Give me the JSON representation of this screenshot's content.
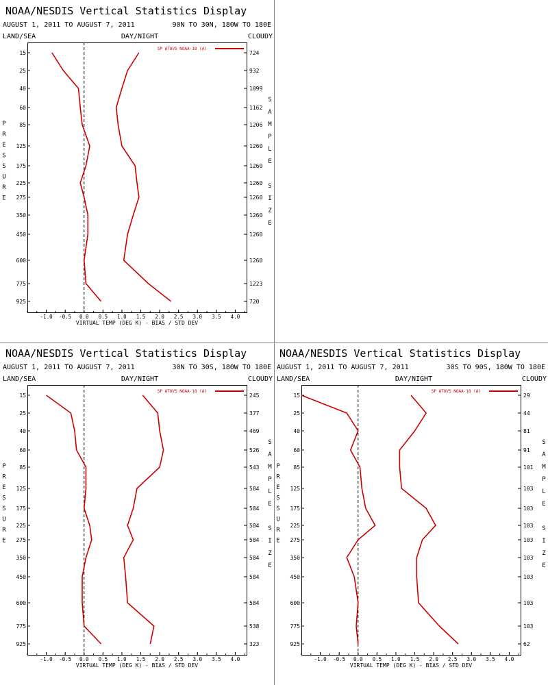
{
  "common": {
    "title": "NOAA/NESDIS Vertical Statistics Display",
    "date_range": "AUGUST 1, 2011 TO AUGUST 7, 2011",
    "label_land_sea": "LAND/SEA",
    "label_day_night": "DAY/NIGHT",
    "label_cloudy": "CLOUDY",
    "legend": "SP ATOVS NOAA-18 (A)",
    "xlabel": "VIRTUAL TEMP (DEG K) - BIAS / STD DEV",
    "ylabel": "PRESSURE",
    "y2label": "SAMPLE SIZE",
    "line_color": "#cc0000"
  },
  "chart_data": [
    {
      "type": "line",
      "region": "90N TO 30N, 180W TO 180E",
      "y": [
        15,
        25,
        40,
        60,
        85,
        125,
        175,
        225,
        275,
        350,
        450,
        600,
        775,
        925
      ],
      "ytick_labels": [
        "15",
        "25",
        "40",
        "60",
        "85",
        "125",
        "175",
        "225",
        "275",
        "350",
        "450",
        "600",
        "775",
        "925"
      ],
      "x_ticks": [
        -1.0,
        -0.5,
        0.0,
        0.5,
        1.0,
        1.5,
        2.0,
        2.5,
        3.0,
        3.5,
        4.0
      ],
      "xtick_labels": [
        "-1.0",
        "-0.5",
        "0.0",
        "0.5",
        "1.0",
        "1.5",
        "2.0",
        "2.5",
        "3.0",
        "3.5",
        "4.0"
      ],
      "xlim": [
        -1.5,
        4.3
      ],
      "sample_size": [
        "724",
        "932",
        "1099",
        "1162",
        "1206",
        "1260",
        "1260",
        "1260",
        "1260",
        "1260",
        "1260",
        "1260",
        "1223",
        "720"
      ],
      "series": [
        {
          "values": [
            -0.85,
            -0.55,
            -0.15,
            -0.1,
            -0.05,
            0.15,
            0.05,
            -0.1,
            0.0,
            0.1,
            0.1,
            0.0,
            0.05,
            0.45
          ]
        },
        {
          "values": [
            1.45,
            1.15,
            1.0,
            0.85,
            0.9,
            1.0,
            1.35,
            1.4,
            1.45,
            1.3,
            1.15,
            1.05,
            1.7,
            2.3
          ]
        }
      ]
    },
    {
      "type": "line",
      "region": "30N TO 30S, 180W TO 180E",
      "y": [
        15,
        25,
        40,
        60,
        85,
        125,
        175,
        225,
        275,
        350,
        450,
        600,
        775,
        925
      ],
      "ytick_labels": [
        "15",
        "25",
        "40",
        "60",
        "85",
        "125",
        "175",
        "225",
        "275",
        "350",
        "450",
        "600",
        "775",
        "925"
      ],
      "x_ticks": [
        -1.0,
        -0.5,
        0.0,
        0.5,
        1.0,
        1.5,
        2.0,
        2.5,
        3.0,
        3.5,
        4.0
      ],
      "xtick_labels": [
        "-1.0",
        "-0.5",
        "0.0",
        "0.5",
        "1.0",
        "1.5",
        "2.0",
        "2.5",
        "3.0",
        "3.5",
        "4.0"
      ],
      "xlim": [
        -1.5,
        4.3
      ],
      "sample_size": [
        "245",
        "377",
        "469",
        "526",
        "543",
        "584",
        "584",
        "584",
        "584",
        "584",
        "584",
        "584",
        "538",
        "323"
      ],
      "series": [
        {
          "values": [
            -1.0,
            -0.35,
            -0.25,
            -0.2,
            0.05,
            0.05,
            0.0,
            0.15,
            0.2,
            0.05,
            -0.05,
            -0.05,
            0.0,
            0.45
          ]
        },
        {
          "values": [
            1.55,
            1.95,
            2.0,
            2.1,
            2.0,
            1.4,
            1.3,
            1.15,
            1.3,
            1.05,
            1.1,
            1.15,
            1.85,
            1.75
          ]
        }
      ]
    },
    {
      "type": "line",
      "region": "30S TO 90S, 180W TO 180E",
      "y": [
        15,
        25,
        40,
        60,
        85,
        125,
        175,
        225,
        275,
        350,
        450,
        600,
        775,
        925
      ],
      "ytick_labels": [
        "15",
        "25",
        "40",
        "60",
        "85",
        "125",
        "175",
        "225",
        "275",
        "350",
        "450",
        "600",
        "775",
        "925"
      ],
      "x_ticks": [
        -1.0,
        -0.5,
        0.0,
        0.5,
        1.0,
        1.5,
        2.0,
        2.5,
        3.0,
        3.5,
        4.0
      ],
      "xtick_labels": [
        "-1.0",
        "-0.5",
        "0.0",
        "0.5",
        "1.0",
        "1.5",
        "2.0",
        "2.5",
        "3.0",
        "3.5",
        "4.0"
      ],
      "xlim": [
        -1.5,
        4.3
      ],
      "sample_size": [
        "29",
        "44",
        "81",
        "91",
        "101",
        "103",
        "103",
        "103",
        "103",
        "103",
        "103",
        "103",
        "103",
        "62"
      ],
      "series": [
        {
          "values": [
            -1.5,
            -0.3,
            0.0,
            -0.2,
            0.05,
            0.1,
            0.2,
            0.45,
            0.0,
            -0.3,
            -0.1,
            0.0,
            -0.05,
            0.0
          ]
        },
        {
          "values": [
            1.4,
            1.8,
            1.5,
            1.1,
            1.1,
            1.15,
            1.8,
            2.05,
            1.7,
            1.55,
            1.55,
            1.6,
            2.15,
            2.65
          ]
        }
      ]
    }
  ]
}
